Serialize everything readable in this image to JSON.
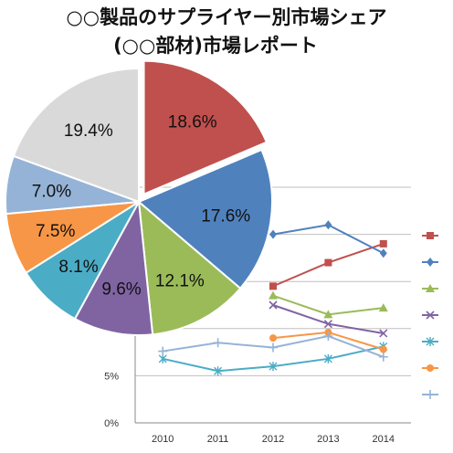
{
  "title_line1": "○○製品のサプライヤー別市場シェア",
  "title_line2": "(○○部材)市場レポート",
  "colors": {
    "c1": "#c0504d",
    "c2": "#4f81bd",
    "c3": "#9bbb59",
    "c4": "#8064a2",
    "c5": "#4bacc6",
    "c6": "#f79646",
    "c7": "#95b3d7",
    "c8": "#d9d9d9"
  },
  "chart_data": [
    {
      "type": "pie",
      "exploded_first_slice": true,
      "slices": [
        {
          "label": "18.6%",
          "value": 18.6,
          "color": "#c0504d"
        },
        {
          "label": "17.6%",
          "value": 17.6,
          "color": "#4f81bd"
        },
        {
          "label": "12.1%",
          "value": 12.1,
          "color": "#9bbb59"
        },
        {
          "label": "9.6%",
          "value": 9.6,
          "color": "#8064a2"
        },
        {
          "label": "8.1%",
          "value": 8.1,
          "color": "#4bacc6"
        },
        {
          "label": "7.5%",
          "value": 7.5,
          "color": "#f79646"
        },
        {
          "label": "7.0%",
          "value": 7.0,
          "color": "#95b3d7"
        },
        {
          "label": "19.4%",
          "value": 19.4,
          "color": "#d9d9d9"
        }
      ]
    },
    {
      "type": "line",
      "x": [
        "2010",
        "2011",
        "2012",
        "2013",
        "2014"
      ],
      "y_ticks": [
        "0%",
        "5%"
      ],
      "ylim": [
        0,
        25
      ],
      "grid": true,
      "legend": "right",
      "series": [
        {
          "color": "#c0504d",
          "marker": "square",
          "values": [
            null,
            null,
            14.5,
            17.0,
            19.0
          ]
        },
        {
          "color": "#4f81bd",
          "marker": "diamond",
          "values": [
            null,
            null,
            20.0,
            21.0,
            18.0
          ]
        },
        {
          "color": "#9bbb59",
          "marker": "triangle",
          "values": [
            null,
            null,
            13.5,
            11.5,
            12.2
          ]
        },
        {
          "color": "#8064a2",
          "marker": "x",
          "values": [
            null,
            null,
            12.5,
            10.5,
            9.5
          ]
        },
        {
          "color": "#4bacc6",
          "marker": "star",
          "values": [
            6.8,
            5.5,
            6.0,
            6.8,
            8.1
          ]
        },
        {
          "color": "#f79646",
          "marker": "circle",
          "values": [
            null,
            null,
            9.0,
            9.6,
            7.8
          ]
        },
        {
          "color": "#95b3d7",
          "marker": "plus",
          "values": [
            7.6,
            8.5,
            8.0,
            9.2,
            7.0
          ]
        }
      ]
    }
  ]
}
